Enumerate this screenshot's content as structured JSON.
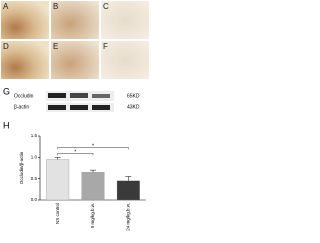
{
  "panels": {
    "letters": [
      "A",
      "B",
      "C",
      "D",
      "E",
      "F"
    ]
  },
  "blot": {
    "label": "G",
    "rows": [
      {
        "protein": "Occludin",
        "size": "65KD"
      },
      {
        "protein": "β-actin",
        "size": "43KD"
      }
    ]
  },
  "chart_data": {
    "type": "bar",
    "label": "H",
    "ylabel": "Occludin/β-actin",
    "categories": [
      "NS control",
      "9 mg/kg.b.w.",
      "24 mg/kg.b.w."
    ],
    "values": [
      0.95,
      0.65,
      0.45
    ],
    "errors": [
      0.05,
      0.05,
      0.1
    ],
    "colors": [
      "#e2e2e2",
      "#a8a8a8",
      "#3a3a3a"
    ],
    "ylim": [
      0,
      1.5
    ],
    "yticks": [
      {
        "value": 0,
        "label": "0.0"
      },
      0.5,
      {
        "value": 1,
        "label": "1.0"
      },
      1.5
    ],
    "annotations": [
      "*",
      "*"
    ]
  }
}
